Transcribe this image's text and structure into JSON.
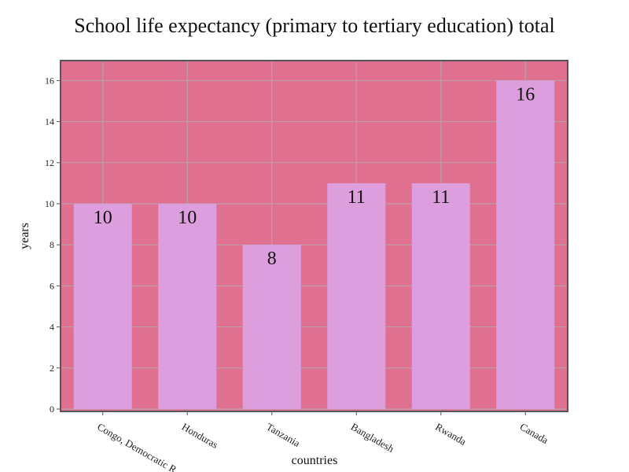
{
  "chart_data": {
    "type": "bar",
    "title": "School life expectancy (primary to tertiary education) total",
    "xlabel": "countries",
    "ylabel": "years",
    "categories": [
      "Congo, Democratic R",
      "Honduras",
      "Tanzania",
      "Bangladesh",
      "Rwanda",
      "Canada"
    ],
    "values": [
      10,
      10,
      8,
      11,
      11,
      16
    ],
    "data_labels": [
      "10",
      "10",
      "8",
      "11",
      "11",
      "16"
    ],
    "ylim": [
      0,
      17
    ],
    "yticks": [
      0,
      2,
      4,
      6,
      8,
      10,
      12,
      14,
      16
    ],
    "grid": true,
    "legend": "none",
    "colors": {
      "plot_background": "#df7090",
      "bar": "#dd9edd",
      "grid": "#b8a4ac",
      "axis": "#555555"
    }
  }
}
